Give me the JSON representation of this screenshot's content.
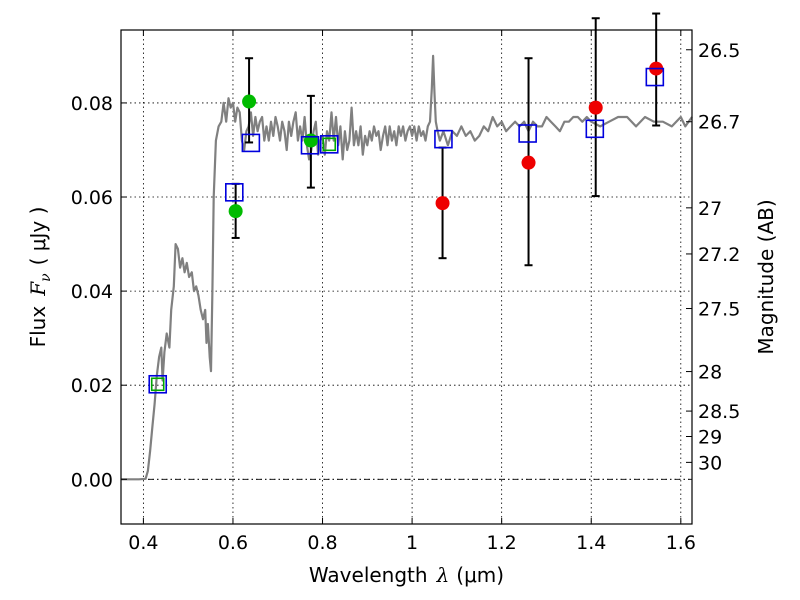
{
  "chart_data": {
    "type": "scatter",
    "title": "",
    "xlabel": "Wavelength",
    "xlabel_symbol": "λ",
    "xlabel_unit": "(μm)",
    "ylabel": "Flux",
    "ylabel_symbol": "F",
    "ylabel_subscript": "ν",
    "ylabel_unit": "( μJy )",
    "y2label": "Magnitude (AB)",
    "xlim": [
      0.35,
      1.625
    ],
    "ylim": [
      -0.0095,
      0.0955
    ],
    "grid": true,
    "x_ticks": [
      0.4,
      0.6,
      0.8,
      1.0,
      1.2,
      1.4,
      1.6
    ],
    "x_tick_labels": [
      "0.4",
      "0.6",
      "0.8",
      "1",
      "1.2",
      "1.4",
      "1.6"
    ],
    "y_ticks": [
      0.0,
      0.02,
      0.04,
      0.06,
      0.08
    ],
    "y_tick_labels": [
      "0.00",
      "0.02",
      "0.04",
      "0.06",
      "0.08"
    ],
    "y2_ticks": [
      {
        "label": "26.5",
        "flux": 0.0913
      },
      {
        "label": "26.7",
        "flux": 0.076
      },
      {
        "label": "27",
        "flux": 0.0577
      },
      {
        "label": "27.2",
        "flux": 0.0479
      },
      {
        "label": "27.5",
        "flux": 0.0363
      },
      {
        "label": "28",
        "flux": 0.0229
      },
      {
        "label": "28.5",
        "flux": 0.0145
      },
      {
        "label": "29",
        "flux": 0.0091
      },
      {
        "label": "30",
        "flux": 0.0036
      }
    ],
    "colors": {
      "model": "#808080",
      "observed_green": "#00bb00",
      "observed_red": "#ee0000",
      "model_photometry": "#0000dd",
      "model_photometry_green": "#00aa00",
      "errorbar": "#000000"
    },
    "series": [
      {
        "kind": "model-spectrum",
        "points": [
          [
            0.35,
            0.0
          ],
          [
            0.39,
            0.0
          ],
          [
            0.405,
            0.0001
          ],
          [
            0.41,
            0.0018
          ],
          [
            0.415,
            0.006
          ],
          [
            0.42,
            0.011
          ],
          [
            0.425,
            0.016
          ],
          [
            0.43,
            0.022
          ],
          [
            0.435,
            0.026
          ],
          [
            0.44,
            0.028
          ],
          [
            0.443,
            0.021
          ],
          [
            0.447,
            0.027
          ],
          [
            0.452,
            0.031
          ],
          [
            0.458,
            0.028
          ],
          [
            0.462,
            0.036
          ],
          [
            0.468,
            0.041
          ],
          [
            0.472,
            0.05
          ],
          [
            0.477,
            0.049
          ],
          [
            0.482,
            0.045
          ],
          [
            0.487,
            0.047
          ],
          [
            0.492,
            0.044
          ],
          [
            0.497,
            0.046
          ],
          [
            0.502,
            0.043
          ],
          [
            0.508,
            0.044
          ],
          [
            0.513,
            0.04
          ],
          [
            0.518,
            0.041
          ],
          [
            0.523,
            0.039
          ],
          [
            0.528,
            0.036
          ],
          [
            0.533,
            0.034
          ],
          [
            0.538,
            0.036
          ],
          [
            0.541,
            0.029
          ],
          [
            0.544,
            0.033
          ],
          [
            0.548,
            0.026
          ],
          [
            0.551,
            0.023
          ],
          [
            0.554,
            0.04
          ],
          [
            0.557,
            0.06
          ],
          [
            0.562,
            0.072
          ],
          [
            0.568,
            0.075
          ],
          [
            0.574,
            0.076
          ],
          [
            0.579,
            0.08
          ],
          [
            0.585,
            0.076
          ],
          [
            0.59,
            0.081
          ],
          [
            0.595,
            0.079
          ],
          [
            0.6,
            0.08
          ],
          [
            0.605,
            0.076
          ],
          [
            0.61,
            0.079
          ],
          [
            0.615,
            0.078
          ],
          [
            0.62,
            0.072
          ],
          [
            0.625,
            0.07
          ],
          [
            0.63,
            0.074
          ],
          [
            0.635,
            0.075
          ],
          [
            0.64,
            0.078
          ],
          [
            0.645,
            0.073
          ],
          [
            0.65,
            0.077
          ],
          [
            0.655,
            0.074
          ],
          [
            0.66,
            0.076
          ],
          [
            0.665,
            0.077
          ],
          [
            0.67,
            0.072
          ],
          [
            0.675,
            0.075
          ],
          [
            0.68,
            0.072
          ],
          [
            0.685,
            0.076
          ],
          [
            0.69,
            0.073
          ],
          [
            0.695,
            0.077
          ],
          [
            0.7,
            0.075
          ],
          [
            0.705,
            0.072
          ],
          [
            0.71,
            0.076
          ],
          [
            0.715,
            0.074
          ],
          [
            0.72,
            0.07
          ],
          [
            0.725,
            0.076
          ],
          [
            0.73,
            0.073
          ],
          [
            0.735,
            0.076
          ],
          [
            0.74,
            0.078
          ],
          [
            0.745,
            0.072
          ],
          [
            0.75,
            0.075
          ],
          [
            0.755,
            0.072
          ],
          [
            0.76,
            0.077
          ],
          [
            0.765,
            0.071
          ],
          [
            0.77,
            0.068
          ],
          [
            0.775,
            0.07
          ],
          [
            0.78,
            0.074
          ],
          [
            0.785,
            0.076
          ],
          [
            0.79,
            0.069
          ],
          [
            0.795,
            0.072
          ],
          [
            0.8,
            0.073
          ],
          [
            0.805,
            0.069
          ],
          [
            0.81,
            0.074
          ],
          [
            0.815,
            0.072
          ],
          [
            0.82,
            0.078
          ],
          [
            0.825,
            0.072
          ],
          [
            0.83,
            0.077
          ],
          [
            0.835,
            0.071
          ],
          [
            0.84,
            0.075
          ],
          [
            0.845,
            0.068
          ],
          [
            0.85,
            0.074
          ],
          [
            0.855,
            0.07
          ],
          [
            0.86,
            0.072
          ],
          [
            0.865,
            0.079
          ],
          [
            0.87,
            0.071
          ],
          [
            0.875,
            0.074
          ],
          [
            0.88,
            0.071
          ],
          [
            0.885,
            0.075
          ],
          [
            0.89,
            0.069
          ],
          [
            0.895,
            0.073
          ],
          [
            0.9,
            0.071
          ],
          [
            0.905,
            0.074
          ],
          [
            0.91,
            0.072
          ],
          [
            0.915,
            0.075
          ],
          [
            0.92,
            0.073
          ],
          [
            0.925,
            0.074
          ],
          [
            0.93,
            0.07
          ],
          [
            0.935,
            0.073
          ],
          [
            0.94,
            0.075
          ],
          [
            0.945,
            0.071
          ],
          [
            0.95,
            0.075
          ],
          [
            0.955,
            0.072
          ],
          [
            0.96,
            0.074
          ],
          [
            0.965,
            0.071
          ],
          [
            0.97,
            0.075
          ],
          [
            0.975,
            0.073
          ],
          [
            0.98,
            0.075
          ],
          [
            0.985,
            0.072
          ],
          [
            0.99,
            0.074
          ],
          [
            0.995,
            0.075
          ],
          [
            1.0,
            0.073
          ],
          [
            1.005,
            0.075
          ],
          [
            1.01,
            0.072
          ],
          [
            1.015,
            0.075
          ],
          [
            1.02,
            0.073
          ],
          [
            1.025,
            0.074
          ],
          [
            1.03,
            0.072
          ],
          [
            1.035,
            0.075
          ],
          [
            1.04,
            0.076
          ],
          [
            1.044,
            0.083
          ],
          [
            1.047,
            0.09
          ],
          [
            1.05,
            0.082
          ],
          [
            1.053,
            0.076
          ],
          [
            1.057,
            0.074
          ],
          [
            1.062,
            0.072
          ],
          [
            1.07,
            0.074
          ],
          [
            1.08,
            0.071
          ],
          [
            1.09,
            0.074
          ],
          [
            1.1,
            0.073
          ],
          [
            1.11,
            0.075
          ],
          [
            1.12,
            0.073
          ],
          [
            1.13,
            0.074
          ],
          [
            1.14,
            0.072
          ],
          [
            1.15,
            0.073
          ],
          [
            1.16,
            0.075
          ],
          [
            1.17,
            0.074
          ],
          [
            1.18,
            0.077
          ],
          [
            1.19,
            0.075
          ],
          [
            1.2,
            0.076
          ],
          [
            1.21,
            0.074
          ],
          [
            1.22,
            0.075
          ],
          [
            1.23,
            0.076
          ],
          [
            1.24,
            0.075
          ],
          [
            1.25,
            0.076
          ],
          [
            1.26,
            0.074
          ],
          [
            1.27,
            0.076
          ],
          [
            1.28,
            0.075
          ],
          [
            1.29,
            0.075
          ],
          [
            1.3,
            0.077
          ],
          [
            1.31,
            0.076
          ],
          [
            1.32,
            0.075
          ],
          [
            1.33,
            0.074
          ],
          [
            1.34,
            0.076
          ],
          [
            1.35,
            0.076
          ],
          [
            1.36,
            0.077
          ],
          [
            1.37,
            0.077
          ],
          [
            1.38,
            0.076
          ],
          [
            1.39,
            0.077
          ],
          [
            1.4,
            0.076
          ],
          [
            1.42,
            0.075
          ],
          [
            1.44,
            0.076
          ],
          [
            1.46,
            0.077
          ],
          [
            1.48,
            0.077
          ],
          [
            1.5,
            0.075
          ],
          [
            1.52,
            0.077
          ],
          [
            1.54,
            0.076
          ],
          [
            1.56,
            0.076
          ],
          [
            1.58,
            0.075
          ],
          [
            1.6,
            0.077
          ],
          [
            1.61,
            0.075
          ],
          [
            1.625,
            0.077
          ]
        ]
      },
      {
        "kind": "observed-green",
        "marker": "circle",
        "points": [
          {
            "x": 0.606,
            "y": 0.057,
            "yerr_low": 0.0513,
            "yerr_high": 0.0628
          },
          {
            "x": 0.636,
            "y": 0.0803,
            "yerr_low": 0.0716,
            "yerr_high": 0.0895
          },
          {
            "x": 0.774,
            "y": 0.072,
            "yerr_low": 0.062,
            "yerr_high": 0.0815
          }
        ]
      },
      {
        "kind": "observed-red",
        "marker": "circle",
        "points": [
          {
            "x": 1.068,
            "y": 0.0587,
            "yerr_low": 0.047,
            "yerr_high": 0.0705
          },
          {
            "x": 1.26,
            "y": 0.0673,
            "yerr_low": 0.0455,
            "yerr_high": 0.0895
          },
          {
            "x": 1.41,
            "y": 0.079,
            "yerr_low": 0.0602,
            "yerr_high": 0.098
          },
          {
            "x": 1.545,
            "y": 0.0873,
            "yerr_low": 0.0752,
            "yerr_high": 0.099
          }
        ]
      },
      {
        "kind": "model-photometry",
        "marker": "square",
        "points": [
          {
            "x": 0.432,
            "y": 0.0202,
            "inner": true
          },
          {
            "x": 0.603,
            "y": 0.061
          },
          {
            "x": 0.64,
            "y": 0.0715
          },
          {
            "x": 0.772,
            "y": 0.071
          },
          {
            "x": 0.815,
            "y": 0.0712,
            "inner": true
          },
          {
            "x": 1.07,
            "y": 0.0723
          },
          {
            "x": 1.258,
            "y": 0.0735
          },
          {
            "x": 1.408,
            "y": 0.0745
          },
          {
            "x": 1.542,
            "y": 0.0855
          }
        ]
      }
    ]
  }
}
